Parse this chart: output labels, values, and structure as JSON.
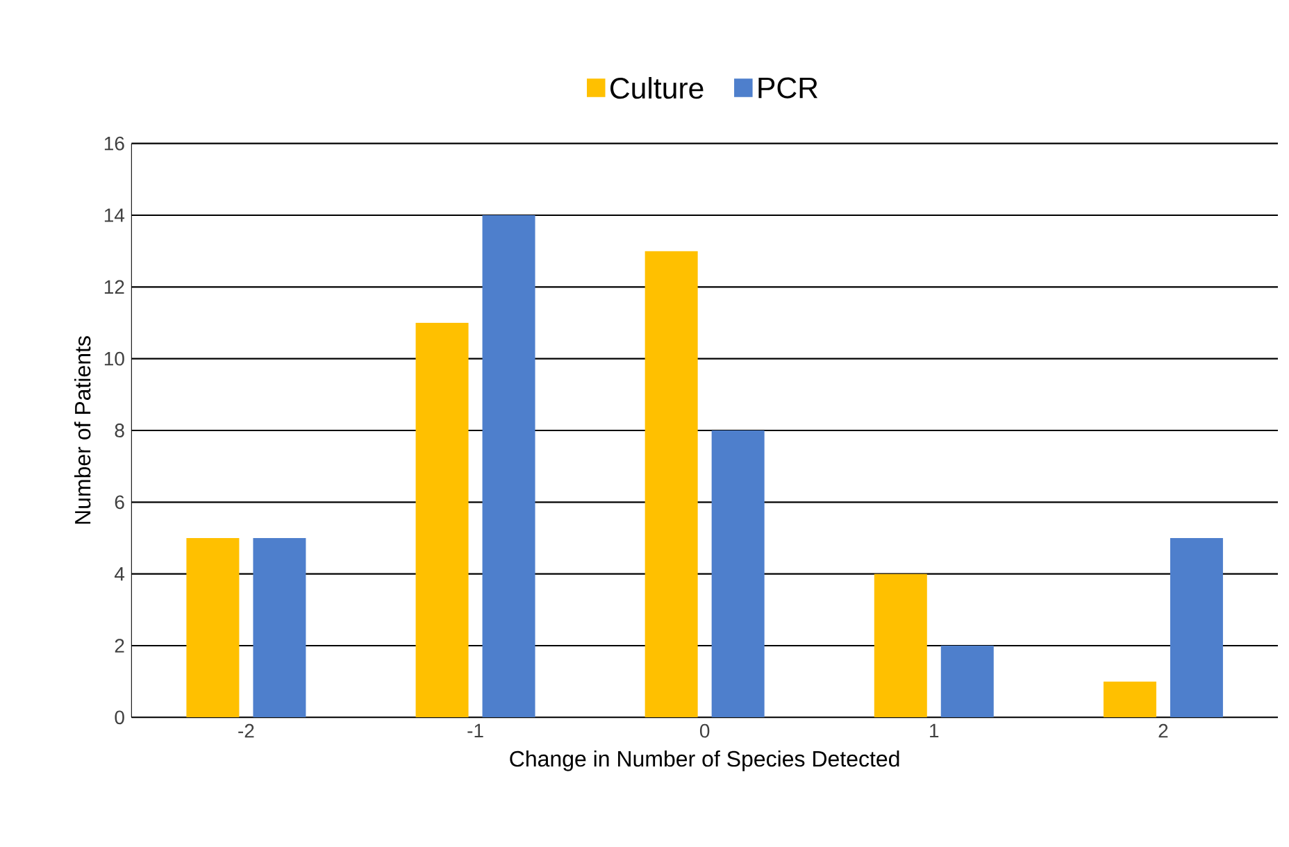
{
  "chart_data": {
    "type": "bar",
    "xlabel": "Change in Number of Species Detected",
    "ylabel": "Number of Patients",
    "categories": [
      "-2",
      "-1",
      "0",
      "1",
      "2"
    ],
    "series": [
      {
        "name": "Culture",
        "color": "#ffc000",
        "values": [
          5,
          11,
          13,
          4,
          1
        ]
      },
      {
        "name": "PCR",
        "color": "#4e7fcc",
        "values": [
          5,
          14,
          8,
          2,
          5
        ]
      }
    ],
    "ylim": [
      0,
      16
    ],
    "yticks": [
      0,
      2,
      4,
      6,
      8,
      10,
      12,
      14,
      16
    ],
    "grid": "y",
    "legend": "top"
  }
}
